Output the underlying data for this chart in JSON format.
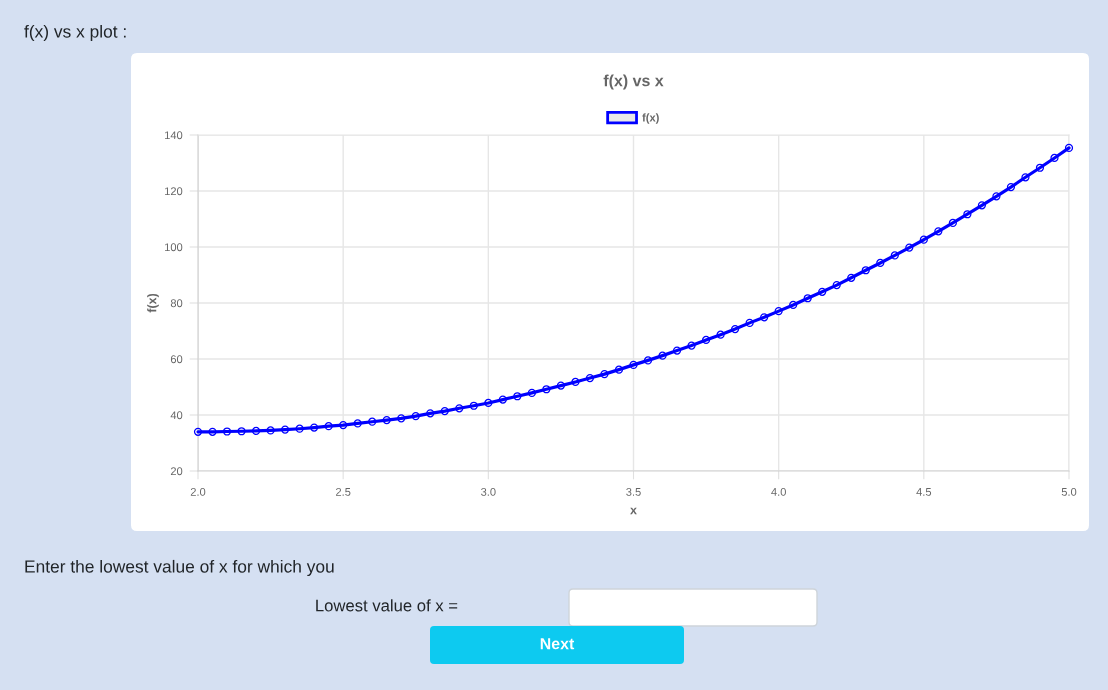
{
  "chart_data": {
    "type": "line",
    "title": "f(x) vs x",
    "xlabel": "x",
    "ylabel": "f(x)",
    "x": [
      2,
      2.05,
      2.1,
      2.15,
      2.2,
      2.25,
      2.3,
      2.35,
      2.4,
      2.45,
      2.5,
      2.55,
      2.6,
      2.65,
      2.7,
      2.75,
      2.8,
      2.85,
      2.9,
      2.95,
      3,
      3.05,
      3.1,
      3.15,
      3.2,
      3.25,
      3.3,
      3.35,
      3.4,
      3.45,
      3.5,
      3.55,
      3.6,
      3.65,
      3.7,
      3.75,
      3.8,
      3.85,
      3.9,
      3.95,
      4,
      4.05,
      4.1,
      4.15,
      4.2,
      4.25,
      4.3,
      4.35,
      4.4,
      4.45,
      4.5,
      4.55,
      4.6,
      4.65,
      4.7,
      4.75,
      4.8,
      4.85,
      4.9,
      4.95,
      5
    ],
    "series": [
      {
        "name": "f(x)",
        "color": "#0000ff",
        "values": [
          34.0,
          34.0,
          34.1,
          34.2,
          34.3,
          34.5,
          34.8,
          35.1,
          35.5,
          36.0,
          36.4,
          37.0,
          37.6,
          38.2,
          38.8,
          39.6,
          40.6,
          41.4,
          42.4,
          43.3,
          44.3,
          45.5,
          46.7,
          47.9,
          49.2,
          50.5,
          51.8,
          53.2,
          54.6,
          56.2,
          57.9,
          59.5,
          61.2,
          63.0,
          64.8,
          66.8,
          68.7,
          70.7,
          72.9,
          74.9,
          77.1,
          79.3,
          81.7,
          84.0,
          86.4,
          89.0,
          91.7,
          94.3,
          97.0,
          99.8,
          102.6,
          105.6,
          108.6,
          111.7,
          114.9,
          118.1,
          121.4,
          124.9,
          128.3,
          131.8,
          135.4
        ]
      }
    ],
    "xlim": [
      2,
      5
    ],
    "ylim": [
      20,
      140
    ],
    "xticks": [
      {
        "value": 2,
        "label": "2.0"
      },
      {
        "value": 2.5,
        "label": "2.5"
      },
      {
        "value": 3,
        "label": "3.0"
      },
      {
        "value": 3.5,
        "label": "3.5"
      },
      {
        "value": 4,
        "label": "4.0"
      },
      {
        "value": 4.5,
        "label": "4.5"
      },
      {
        "value": 5,
        "label": "5.0"
      }
    ],
    "yticks": [
      20,
      40,
      60,
      80,
      100,
      120,
      140
    ],
    "grid": true,
    "legend": "top",
    "marker": "circle",
    "line_style": "solid",
    "annotations": [
      "f(x) vs x plot :",
      "Enter the lowest value of x for which you",
      "Lowest value of x =",
      "Next"
    ]
  }
}
